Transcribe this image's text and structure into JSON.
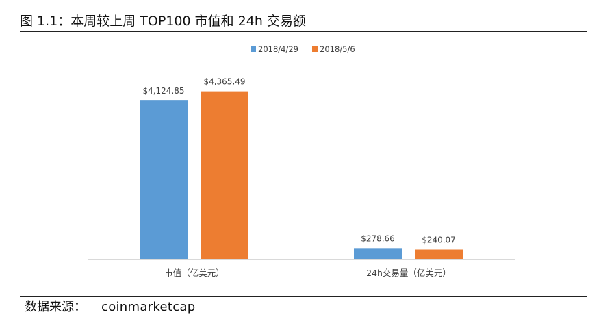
{
  "figure": {
    "title": "图 1.1：本周较上周 TOP100 市值和 24h 交易额",
    "source_label": "数据来源：",
    "source_value": "coinmarketcap"
  },
  "colors": {
    "series_1": "#5b9bd5",
    "series_2": "#ed7d31",
    "axis": "#d9d9d9",
    "label_text": "#404040",
    "rule": "#222222"
  },
  "chart_data": {
    "type": "bar",
    "categories": [
      "市值（亿美元）",
      "24h交易量（亿美元）"
    ],
    "series": [
      {
        "name": "2018/4/29",
        "values": [
          4124.85,
          278.66
        ],
        "labels": [
          "$4,124.85",
          "$278.66"
        ]
      },
      {
        "name": "2018/5/6",
        "values": [
          4365.49,
          240.07
        ],
        "labels": [
          "$4,365.49",
          "$240.07"
        ]
      }
    ],
    "title": "",
    "xlabel": "",
    "ylabel": "",
    "ylim": [
      0,
      4750
    ],
    "grid": false,
    "legend_position": "top-center",
    "y_axis_visible": false
  }
}
